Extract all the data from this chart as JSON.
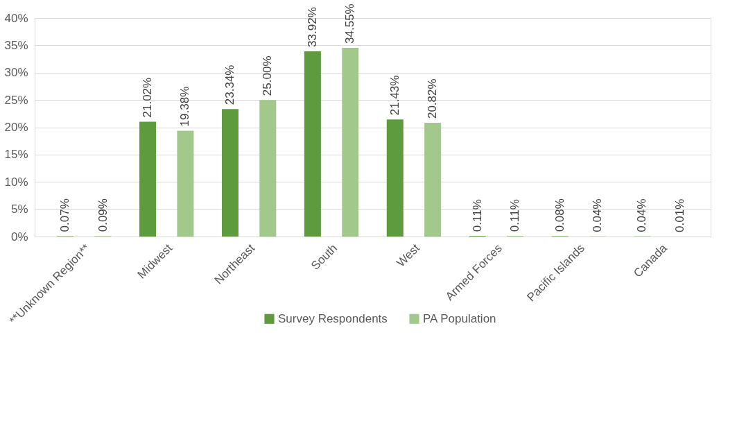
{
  "chart_data": {
    "type": "bar",
    "categories": [
      "**Unknown Region**",
      "Midwest",
      "Northeast",
      "South",
      "West",
      "Armed Forces",
      "Pacific Islands",
      "Canada"
    ],
    "series": [
      {
        "name": "Survey Respondents",
        "color": "#5e9a3e",
        "values": [
          0.07,
          21.02,
          23.34,
          33.92,
          21.43,
          0.11,
          0.08,
          0.04
        ],
        "value_labels": [
          "0.07%",
          "21.02%",
          "23.34%",
          "33.92%",
          "21.43%",
          "0.11%",
          "0.08%",
          "0.04%"
        ]
      },
      {
        "name": "PA Population",
        "color": "#a3c88c",
        "values": [
          0.09,
          19.38,
          25.0,
          34.55,
          20.82,
          0.11,
          0.04,
          0.01
        ],
        "value_labels": [
          "0.09%",
          "19.38%",
          "25.00%",
          "34.55%",
          "20.82%",
          "0.11%",
          "0.04%",
          "0.01%"
        ]
      }
    ],
    "ylim": [
      0,
      40
    ],
    "yticks": [
      {
        "value": 0,
        "label": "0%"
      },
      {
        "value": 5,
        "label": "5%"
      },
      {
        "value": 10,
        "label": "10%"
      },
      {
        "value": 15,
        "label": "15%"
      },
      {
        "value": 20,
        "label": "20%"
      },
      {
        "value": 25,
        "label": "25%"
      },
      {
        "value": 30,
        "label": "30%"
      },
      {
        "value": 35,
        "label": "35%"
      },
      {
        "value": 40,
        "label": "40%"
      }
    ],
    "grid": "y",
    "legend": "bottom"
  }
}
